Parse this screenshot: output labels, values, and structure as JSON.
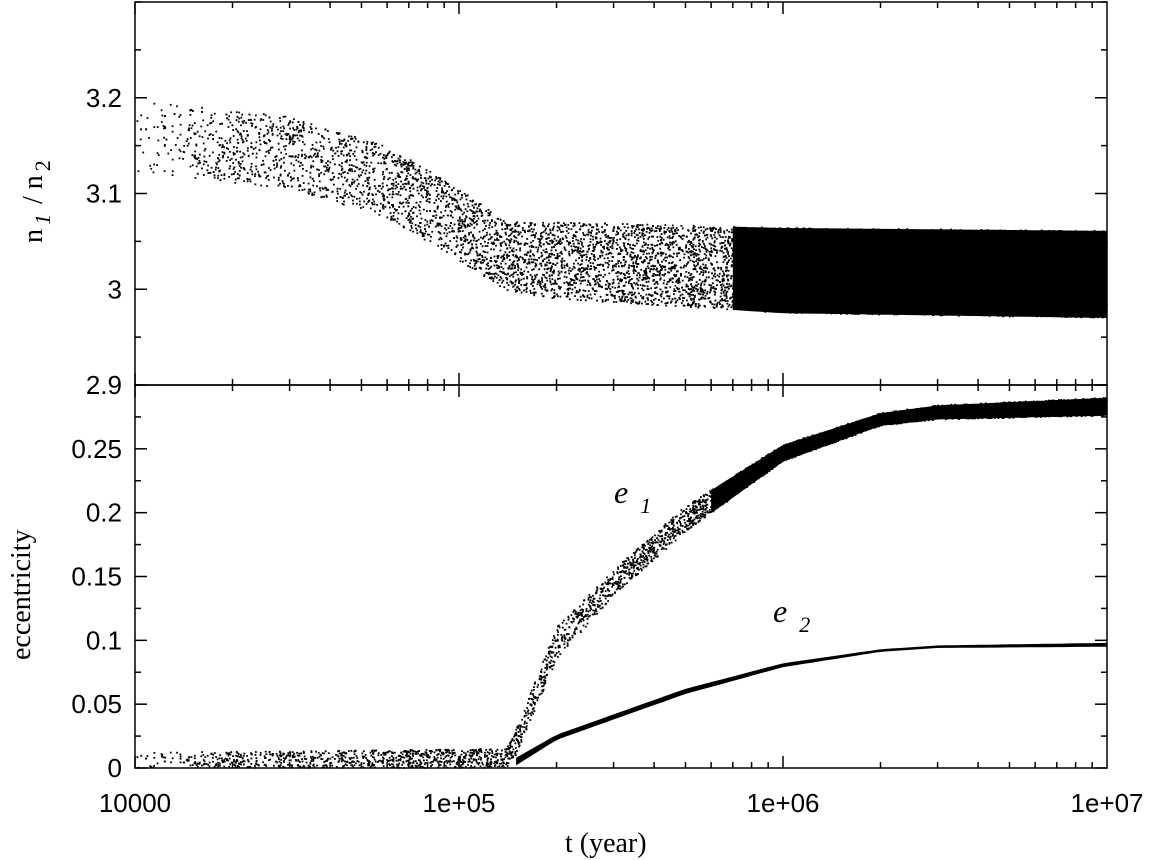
{
  "chart_data": [
    {
      "type": "scatter",
      "panel": "top",
      "xscale": "log",
      "xlim": [
        10000,
        10000000
      ],
      "ylim": [
        2.9,
        3.3
      ],
      "grid": false,
      "yticks": [
        {
          "value": 2.9,
          "label": "2.9"
        },
        {
          "value": 3.0,
          "label": "3"
        },
        {
          "value": 3.1,
          "label": "3.1"
        },
        {
          "value": 3.2,
          "label": "3.2"
        }
      ],
      "ylabel": {
        "n": "n",
        "s1": "1",
        "slash": "/ n",
        "s2": "2"
      },
      "series": [
        {
          "band": {
            "x": [
              10000,
              30000,
              60000,
              100000,
              140000,
              200000,
              1000000,
              10000000
            ],
            "upper": [
              3.198,
              3.18,
              3.15,
              3.105,
              3.07,
              3.07,
              3.064,
              3.061
            ],
            "lower": [
              3.122,
              3.105,
              3.075,
              3.03,
              2.998,
              2.99,
              2.975,
              2.97
            ]
          }
        }
      ]
    },
    {
      "type": "scatter",
      "panel": "bottom",
      "xscale": "log",
      "xlim": [
        10000,
        10000000
      ],
      "ylim": [
        0,
        0.3
      ],
      "grid": false,
      "xlabel": "t (year)",
      "ylabel": "eccentricity",
      "xticks": [
        {
          "value": 10000,
          "label": "10000"
        },
        {
          "value": 100000,
          "label": "1e+05"
        },
        {
          "value": 1000000,
          "label": "1e+06"
        },
        {
          "value": 10000000,
          "label": "1e+07"
        }
      ],
      "yticks": [
        {
          "value": 0,
          "label": "0"
        },
        {
          "value": 0.05,
          "label": "0.05"
        },
        {
          "value": 0.1,
          "label": "0.1"
        },
        {
          "value": 0.15,
          "label": "0.15"
        },
        {
          "value": 0.2,
          "label": "0.2"
        },
        {
          "value": 0.25,
          "label": "0.25"
        }
      ],
      "series": [
        {
          "name": "e 1",
          "x": [
            10000,
            140000,
            150000,
            200000,
            300000,
            500000,
            1000000,
            2000000,
            3000000,
            10000000
          ],
          "upper": [
            0.012,
            0.015,
            0.03,
            0.11,
            0.155,
            0.205,
            0.253,
            0.278,
            0.284,
            0.29
          ],
          "lower": [
            0.0,
            0.0,
            0.01,
            0.085,
            0.135,
            0.185,
            0.24,
            0.268,
            0.273,
            0.276
          ]
        },
        {
          "name": "e 2",
          "x": [
            10000,
            140000,
            150000,
            200000,
            300000,
            500000,
            1000000,
            2000000,
            3000000,
            10000000
          ],
          "upper": [
            0.012,
            0.015,
            0.008,
            0.026,
            0.042,
            0.062,
            0.082,
            0.093,
            0.096,
            0.098
          ],
          "lower": [
            0.0,
            0.0,
            0.002,
            0.022,
            0.038,
            0.058,
            0.079,
            0.091,
            0.094,
            0.095
          ]
        }
      ],
      "annotations": [
        {
          "main": "e",
          "sub": "1"
        },
        {
          "main": "e",
          "sub": "2"
        }
      ]
    }
  ]
}
